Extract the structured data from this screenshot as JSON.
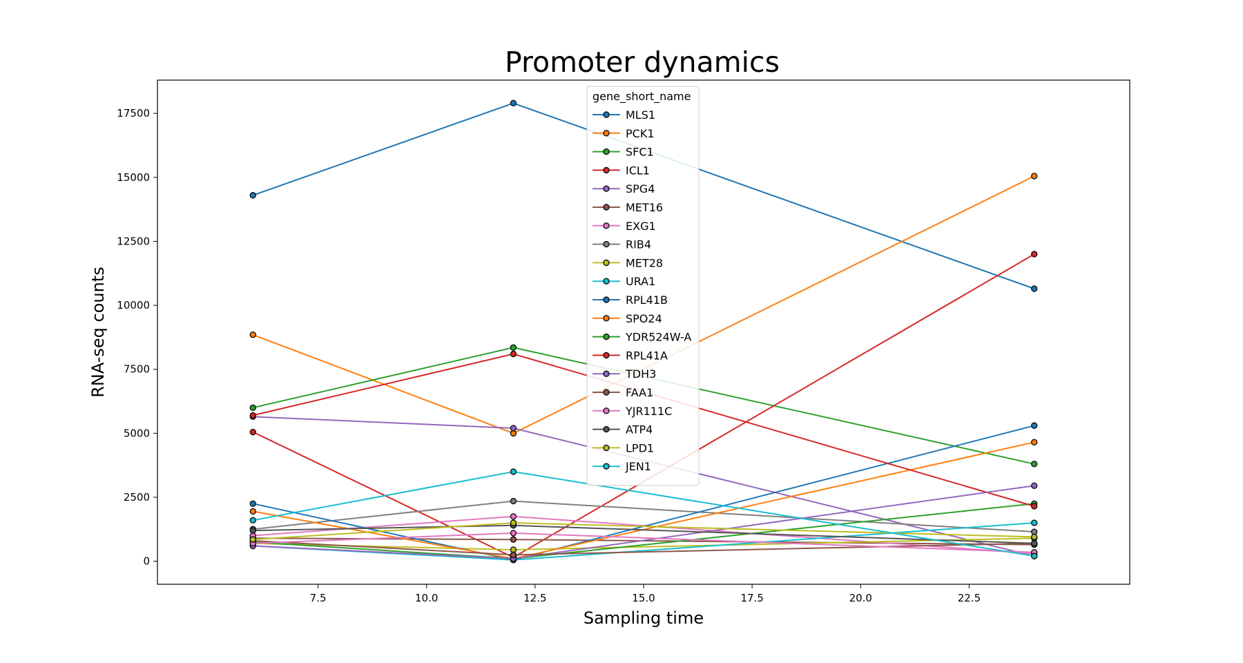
{
  "chart_data": {
    "type": "line",
    "title": "Promoter dynamics",
    "xlabel": "Sampling time",
    "ylabel": "RNA-seq counts",
    "xlim": [
      3.8,
      26.2
    ],
    "ylim": [
      -900,
      18800
    ],
    "xticks": [
      7.5,
      10.0,
      12.5,
      15.0,
      17.5,
      20.0,
      22.5
    ],
    "xtick_labels": [
      "7.5",
      "10.0",
      "12.5",
      "15.0",
      "17.5",
      "20.0",
      "22.5"
    ],
    "yticks": [
      0,
      2500,
      5000,
      7500,
      10000,
      12500,
      15000,
      17500
    ],
    "ytick_labels": [
      "0",
      "2500",
      "5000",
      "7500",
      "10000",
      "12500",
      "15000",
      "17500"
    ],
    "grid": false,
    "legend": {
      "title": "gene_short_name",
      "placement": "upper-center"
    },
    "x": [
      6,
      12,
      24
    ],
    "series": [
      {
        "name": "MLS1",
        "color": "#1f77b4",
        "values": [
          14300,
          17900,
          10650
        ]
      },
      {
        "name": "PCK1",
        "color": "#ff7f0e",
        "values": [
          8850,
          5000,
          15050
        ]
      },
      {
        "name": "SFC1",
        "color": "#2ca02c",
        "values": [
          6000,
          8350,
          3800
        ]
      },
      {
        "name": "ICL1",
        "color": "#d62728",
        "values": [
          5050,
          150,
          12000
        ]
      },
      {
        "name": "SPG4",
        "color": "#9467bd",
        "values": [
          5650,
          5200,
          200
        ]
      },
      {
        "name": "MET16",
        "color": "#8c564b",
        "values": [
          900,
          850,
          650
        ]
      },
      {
        "name": "EXG1",
        "color": "#e377c2",
        "values": [
          1000,
          1750,
          300
        ]
      },
      {
        "name": "RIB4",
        "color": "#7f7f7f",
        "values": [
          1250,
          2350,
          1150
        ]
      },
      {
        "name": "MET28",
        "color": "#bcbd22",
        "values": [
          700,
          450,
          900
        ]
      },
      {
        "name": "URA1",
        "color": "#17becf",
        "values": [
          600,
          50,
          1500
        ]
      },
      {
        "name": "RPL41B",
        "color": "#1f77b4",
        "values": [
          2250,
          50,
          5300
        ]
      },
      {
        "name": "SPO24",
        "color": "#ff7f0e",
        "values": [
          1950,
          100,
          4650
        ]
      },
      {
        "name": "YDR524W-A",
        "color": "#2ca02c",
        "values": [
          750,
          100,
          2250
        ]
      },
      {
        "name": "RPL41A",
        "color": "#d62728",
        "values": [
          5700,
          8100,
          2150
        ]
      },
      {
        "name": "TDH3",
        "color": "#9467bd",
        "values": [
          600,
          100,
          2950
        ]
      },
      {
        "name": "FAA1",
        "color": "#8c564b",
        "values": [
          800,
          250,
          700
        ]
      },
      {
        "name": "YJR111C",
        "color": "#e377c2",
        "values": [
          700,
          1100,
          350
        ]
      },
      {
        "name": "ATP4",
        "color": "#555555",
        "values": [
          1200,
          1400,
          700
        ]
      },
      {
        "name": "LPD1",
        "color": "#bcbd22",
        "values": [
          850,
          1500,
          950
        ]
      },
      {
        "name": "JEN1",
        "color": "#17becf",
        "values": [
          1600,
          3500,
          200
        ]
      }
    ]
  }
}
